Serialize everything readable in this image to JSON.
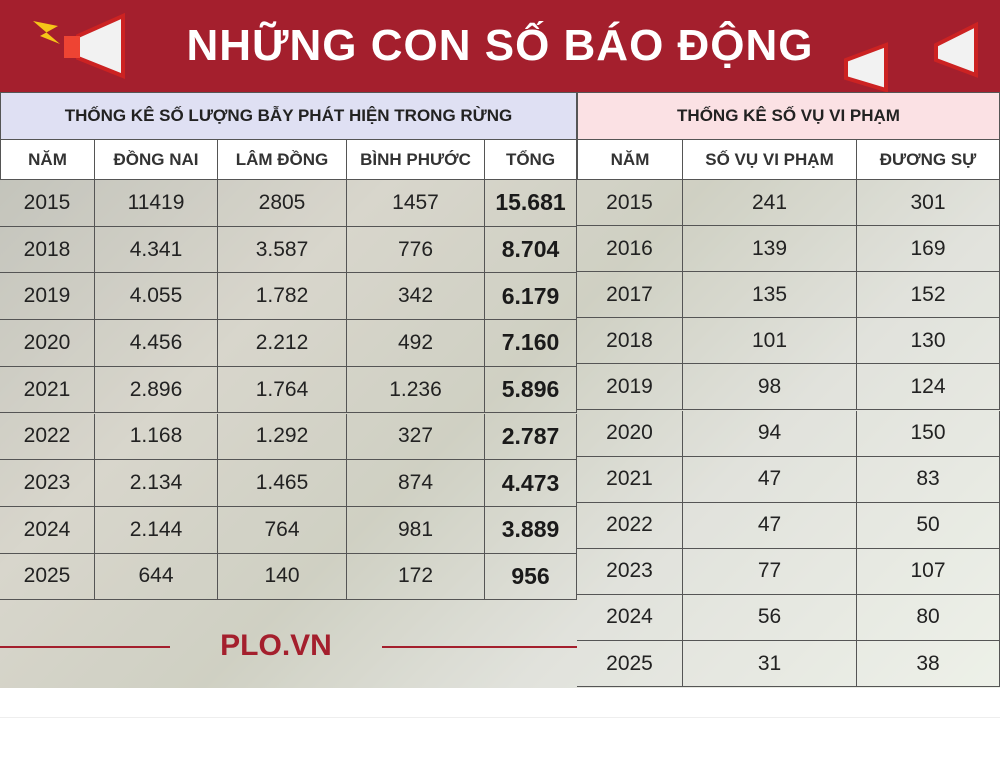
{
  "header": {
    "title": "NHỮNG CON SỐ BÁO ĐỘNG"
  },
  "traps_table": {
    "title": "THỐNG KÊ SỐ LƯỢNG BẪY PHÁT HIỆN TRONG RỪNG",
    "columns": [
      "NĂM",
      "ĐỒNG NAI",
      "LÂM ĐỒNG",
      "BÌNH PHƯỚC",
      "TỔNG"
    ],
    "rows": [
      [
        "2015",
        "11419",
        "2805",
        "1457",
        "15.681"
      ],
      [
        "2018",
        "4.341",
        "3.587",
        "776",
        "8.704"
      ],
      [
        "2019",
        "4.055",
        "1.782",
        "342",
        "6.179"
      ],
      [
        "2020",
        "4.456",
        "2.212",
        "492",
        "7.160"
      ],
      [
        "2021",
        "2.896",
        "1.764",
        "1.236",
        "5.896"
      ],
      [
        "2022",
        "1.168",
        "1.292",
        "327",
        "2.787"
      ],
      [
        "2023",
        "2.134",
        "1.465",
        "874",
        "4.473"
      ],
      [
        "2024",
        "2.144",
        "764",
        "981",
        "3.889"
      ],
      [
        "2025",
        "644",
        "140",
        "172",
        "956"
      ]
    ]
  },
  "violations_table": {
    "title": "THỐNG KÊ SỐ VỤ VI PHẠM",
    "columns": [
      "NĂM",
      "SỐ VỤ VI PHẠM",
      "ĐƯƠNG SỰ"
    ],
    "rows": [
      [
        "2015",
        "241",
        "301"
      ],
      [
        "2016",
        "139",
        "169"
      ],
      [
        "2017",
        "135",
        "152"
      ],
      [
        "2018",
        "101",
        "130"
      ],
      [
        "2019",
        "98",
        "124"
      ],
      [
        "2020",
        "94",
        "150"
      ],
      [
        "2021",
        "47",
        "83"
      ],
      [
        "2022",
        "47",
        "50"
      ],
      [
        "2023",
        "77",
        "107"
      ],
      [
        "2024",
        "56",
        "80"
      ],
      [
        "2025",
        "31",
        "38"
      ]
    ]
  },
  "footer": {
    "source": "PLO.VN"
  }
}
